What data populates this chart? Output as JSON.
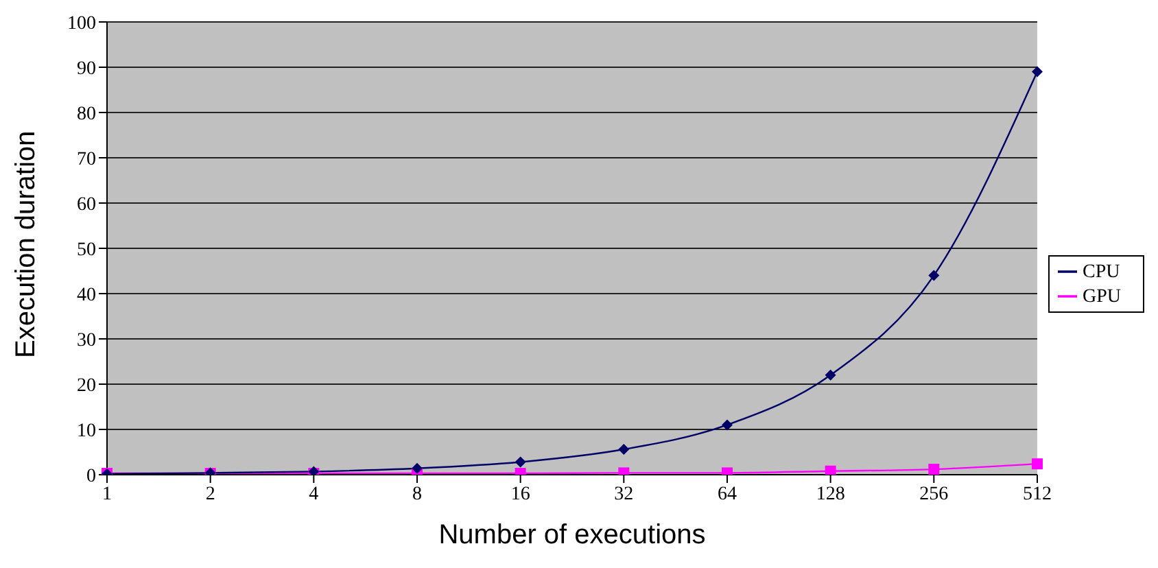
{
  "chart_data": {
    "type": "line",
    "xlabel": "Number of executions",
    "ylabel": "Execution duration",
    "categories": [
      "1",
      "2",
      "4",
      "8",
      "16",
      "32",
      "64",
      "128",
      "256",
      "512"
    ],
    "series": [
      {
        "name": "CPU",
        "color": "#000066",
        "marker": "diamond",
        "values": [
          0.2,
          0.4,
          0.7,
          1.4,
          2.8,
          5.6,
          11,
          22,
          44,
          89
        ]
      },
      {
        "name": "GPU",
        "color": "#ff00ff",
        "marker": "square",
        "values": [
          0.3,
          0.3,
          0.3,
          0.3,
          0.3,
          0.4,
          0.4,
          0.8,
          1.2,
          2.4
        ]
      }
    ],
    "ylim": [
      0,
      100
    ],
    "yticks": [
      0,
      10,
      20,
      30,
      40,
      50,
      60,
      70,
      80,
      90,
      100
    ],
    "grid": "y",
    "legend": "right",
    "line_style": "solid"
  }
}
